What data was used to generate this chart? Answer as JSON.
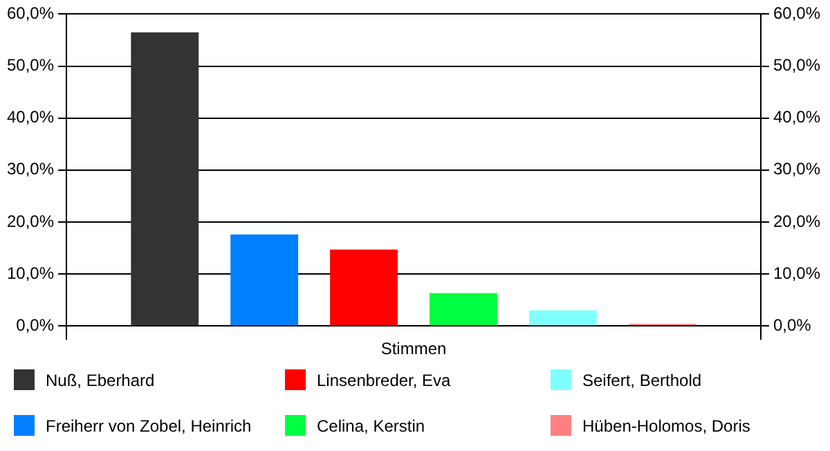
{
  "chart_data": {
    "type": "bar",
    "categories": [
      "Stimmen"
    ],
    "series": [
      {
        "name": "Nuß, Eberhard",
        "color": "#333333",
        "values": [
          56.5
        ]
      },
      {
        "name": "Freiherr von Zobel, Heinrich",
        "color": "#0080ff",
        "values": [
          17.6
        ]
      },
      {
        "name": "Linsenbreder, Eva",
        "color": "#ff0000",
        "values": [
          14.7
        ]
      },
      {
        "name": "Celina, Kerstin",
        "color": "#00ff40",
        "values": [
          6.3
        ]
      },
      {
        "name": "Seifert, Berthold",
        "color": "#80ffff",
        "values": [
          3.0
        ]
      },
      {
        "name": "Hüben-Holomos, Doris",
        "color": "#ff8080",
        "values": [
          0.4
        ]
      }
    ],
    "ylim": [
      0,
      60
    ],
    "yticks": [
      {
        "value": 0,
        "label": "0,0%"
      },
      {
        "value": 10,
        "label": "10,0%"
      },
      {
        "value": 20,
        "label": "20,0%"
      },
      {
        "value": 30,
        "label": "30,0%"
      },
      {
        "value": 40,
        "label": "40,0%"
      },
      {
        "value": 50,
        "label": "50,0%"
      },
      {
        "value": 60,
        "label": "60,0%"
      }
    ],
    "grid": "y",
    "legend": "bottom"
  }
}
